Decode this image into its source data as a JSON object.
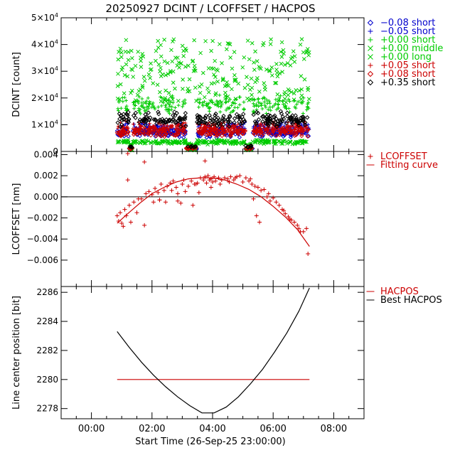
{
  "chart_data": [
    {
      "type": "scatter",
      "title": "20250927 DCINT / LCOFFSET / HACPOS",
      "xlabel": "",
      "ylabel": "DCINT [count]",
      "xlim": [
        -1.0,
        9.0
      ],
      "ylim": [
        0,
        50000
      ],
      "x_unit": "hours from 26-Sep-25 23:00:00",
      "y_ticks": [
        0,
        10000,
        20000,
        30000,
        40000,
        50000
      ],
      "y_tick_labels": [
        {
          "mant": "0",
          "exp": ""
        },
        {
          "mant": "1×10",
          "exp": "4"
        },
        {
          "mant": "2×10",
          "exp": "4"
        },
        {
          "mant": "3×10",
          "exp": "4"
        },
        {
          "mant": "4×10",
          "exp": "4"
        },
        {
          "mant": "5×10",
          "exp": "4"
        }
      ],
      "legend_position": "right",
      "series": [
        {
          "name": "−0.08 short",
          "marker": "diamond",
          "color": "#0000cc",
          "level": 7000,
          "scatter": 2000
        },
        {
          "name": "−0.05 short",
          "marker": "plus",
          "color": "#0000cc",
          "level": 9000,
          "scatter": 2000
        },
        {
          "name": "+0.00 short",
          "marker": "plus",
          "color": "#00cc00",
          "level": 17500,
          "scatter": 2500
        },
        {
          "name": "+0.00 middle",
          "marker": "cross",
          "color": "#00cc00",
          "level": 30000,
          "scatter": 12000
        },
        {
          "name": "+0.00 long",
          "marker": "cross",
          "color": "#00cc00",
          "level": 3500,
          "scatter": 800
        },
        {
          "name": "+0.05 short",
          "marker": "plus",
          "color": "#cc0000",
          "level": 9000,
          "scatter": 2000
        },
        {
          "name": "+0.08 short",
          "marker": "diamond",
          "color": "#cc0000",
          "level": 7500,
          "scatter": 2000
        },
        {
          "name": "+0.35 short",
          "marker": "diamond",
          "color": "#000000",
          "level": 12000,
          "scatter": 2500
        }
      ]
    },
    {
      "type": "scatter",
      "title": "",
      "xlabel": "",
      "ylabel": "LCOFFSET [nm]",
      "xlim": [
        -1.0,
        9.0
      ],
      "ylim": [
        -0.0085,
        0.0043
      ],
      "y_ticks": [
        -0.006,
        -0.004,
        -0.002,
        0.0,
        0.002,
        0.004
      ],
      "y_tick_labels": [
        "−0.006",
        "−0.004",
        "−0.002",
        "0.000",
        "0.002",
        "0.004"
      ],
      "zero_line": true,
      "legend_position": "right",
      "series": [
        {
          "name": "LCOFFSET",
          "marker": "plus",
          "color": "#cc0000",
          "x": [
            0.85,
            0.9,
            0.95,
            1.0,
            1.05,
            1.1,
            1.15,
            1.2,
            1.25,
            1.3,
            1.4,
            1.5,
            1.55,
            1.65,
            1.75,
            1.8,
            1.9,
            2.0,
            2.05,
            2.1,
            2.2,
            2.25,
            2.3,
            2.4,
            2.45,
            2.5,
            2.6,
            2.65,
            2.7,
            2.8,
            2.85,
            2.95,
            3.0,
            3.05,
            3.1,
            3.2,
            3.3,
            3.35,
            3.4,
            3.5,
            3.55,
            3.6,
            3.7,
            3.75,
            3.8,
            3.85,
            3.9,
            3.95,
            4.0,
            4.05,
            4.1,
            4.2,
            4.25,
            4.3,
            4.4,
            4.5,
            4.55,
            4.6,
            4.7,
            4.75,
            4.8,
            4.9,
            5.0,
            5.1,
            5.2,
            5.25,
            5.3,
            5.35,
            5.4,
            5.5,
            5.55,
            5.6,
            5.7,
            5.8,
            5.85,
            5.9,
            6.0,
            6.1,
            6.2,
            6.3,
            6.35,
            6.4,
            6.5,
            6.55,
            6.6,
            6.7,
            6.8,
            6.85,
            6.9,
            7.0,
            7.1,
            7.15,
            1.2,
            1.75,
            2.25,
            3.75,
            3.95,
            5.45,
            2.85,
            3.45
          ],
          "y": [
            -0.0018,
            -0.0023,
            -0.0015,
            -0.0025,
            -0.0028,
            -0.0012,
            -0.0018,
            0.0016,
            -0.0008,
            -0.0024,
            -0.0005,
            -0.0015,
            -0.0002,
            -0.0002,
            -0.0027,
            0.0003,
            0.0005,
            0.0002,
            -0.0005,
            0.0008,
            0.0004,
            -0.0003,
            0.0012,
            0.0006,
            -0.0005,
            0.001,
            0.0013,
            0.0006,
            0.0015,
            0.0009,
            0.0003,
            -0.0006,
            0.0012,
            0.0016,
            0.0005,
            0.001,
            0.0015,
            -0.0008,
            0.0012,
            0.0013,
            0.0004,
            0.0018,
            0.0016,
            0.0019,
            0.0013,
            0.002,
            0.0016,
            0.0017,
            0.0014,
            0.0019,
            0.0015,
            0.0018,
            0.0012,
            0.0016,
            0.0018,
            0.0017,
            0.0014,
            0.0019,
            0.0016,
            0.0018,
            0.0019,
            0.002,
            0.0014,
            0.0018,
            0.0015,
            0.0017,
            0.0012,
            -0.0002,
            0.001,
            0.0009,
            -0.0024,
            0.0006,
            0.0007,
            0.0,
            0.0003,
            -0.0004,
            -0.0001,
            -0.0005,
            -0.0008,
            -0.0012,
            -0.0013,
            -0.0016,
            -0.0019,
            -0.0021,
            -0.0022,
            -0.0024,
            -0.0027,
            -0.003,
            -0.0033,
            -0.0033,
            -0.003,
            -0.0054,
            0.0041,
            0.0033,
            -0.0003,
            0.0034,
            0.0009,
            -0.0018,
            -0.0004,
            0.0012
          ]
        },
        {
          "name": "Fitting curve",
          "marker": "line",
          "color": "#cc0000",
          "x": [
            0.85,
            1.2,
            1.6,
            2.0,
            2.4,
            2.8,
            3.2,
            3.6,
            4.0,
            4.4,
            4.8,
            5.2,
            5.6,
            6.0,
            6.4,
            6.8,
            7.2
          ],
          "y": [
            -0.0025,
            -0.0016,
            -0.0006,
            0.0003,
            0.0009,
            0.0014,
            0.0017,
            0.0018,
            0.0018,
            0.0016,
            0.0012,
            0.0007,
            0.0,
            -0.0009,
            -0.0019,
            -0.0031,
            -0.0047
          ]
        }
      ]
    },
    {
      "type": "line",
      "title": "",
      "xlabel": "Start Time (26-Sep-25 23:00:00)",
      "ylabel": "Line center position [bit]",
      "xlim": [
        -1.0,
        9.0
      ],
      "ylim": [
        2277.3,
        2286.4
      ],
      "x_ticks": [
        0,
        2,
        4,
        6,
        8
      ],
      "x_tick_labels": [
        "00:00",
        "02:00",
        "04:00",
        "06:00",
        "08:00"
      ],
      "y_ticks": [
        2278,
        2280,
        2282,
        2284,
        2286
      ],
      "y_tick_labels": [
        "2278",
        "2280",
        "2282",
        "2284",
        "2286"
      ],
      "legend_position": "right",
      "series": [
        {
          "name": "HACPOS",
          "color": "#cc0000",
          "x": [
            0.85,
            7.2
          ],
          "y": [
            2280.0,
            2280.0
          ]
        },
        {
          "name": "Best HACPOS",
          "color": "#000000",
          "x": [
            0.85,
            1.25,
            1.65,
            2.05,
            2.45,
            2.85,
            3.25,
            3.65,
            4.05,
            4.45,
            4.85,
            5.25,
            5.65,
            6.05,
            6.45,
            6.85,
            7.2
          ],
          "y": [
            2283.3,
            2282.2,
            2281.2,
            2280.3,
            2279.5,
            2278.8,
            2278.2,
            2277.7,
            2277.7,
            2278.1,
            2278.8,
            2279.7,
            2280.7,
            2281.9,
            2283.2,
            2284.7,
            2286.3
          ]
        }
      ]
    }
  ]
}
